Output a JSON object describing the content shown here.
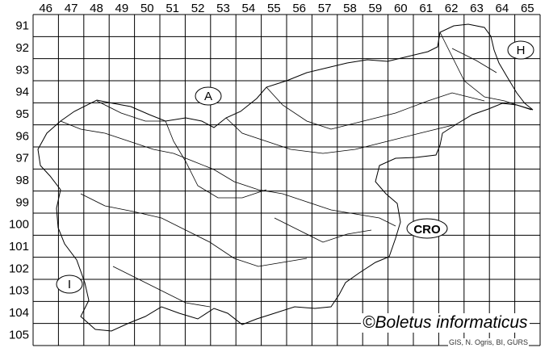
{
  "map": {
    "columns": [
      "46",
      "47",
      "48",
      "49",
      "50",
      "51",
      "52",
      "53",
      "54",
      "55",
      "56",
      "57",
      "58",
      "59",
      "60",
      "61",
      "62",
      "63",
      "64",
      "65"
    ],
    "rows": [
      "91",
      "92",
      "93",
      "94",
      "95",
      "96",
      "97",
      "98",
      "99",
      "100",
      "101",
      "102",
      "103",
      "104",
      "105"
    ],
    "country_labels": [
      {
        "id": "austria",
        "text": "A"
      },
      {
        "id": "hungary",
        "text": "H"
      },
      {
        "id": "croatia",
        "text": "CRO"
      },
      {
        "id": "italy",
        "text": "I"
      }
    ],
    "copyright": "©Boletus informaticus",
    "credit": "GIS, N. Ogris, BI, GURS",
    "colors": {
      "line": "#000000",
      "background": "#ffffff"
    }
  }
}
